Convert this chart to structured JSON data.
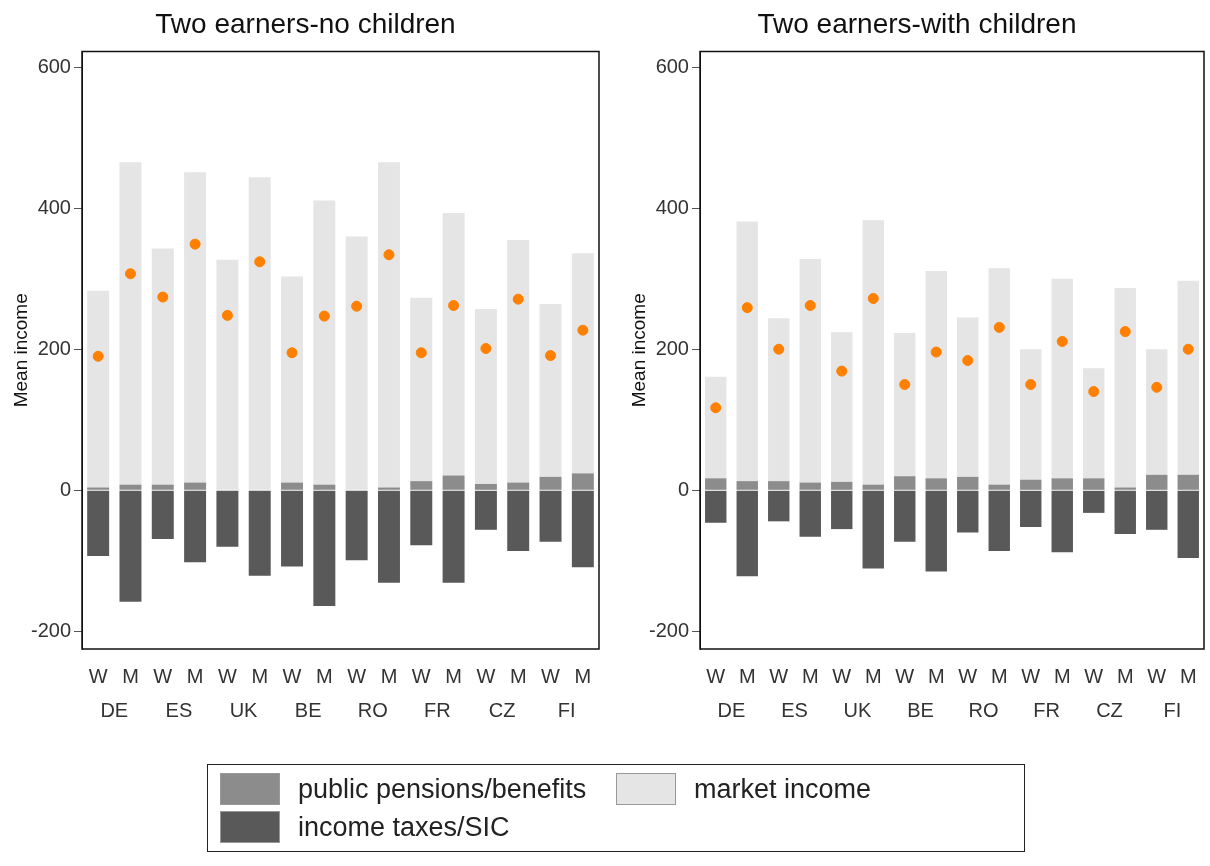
{
  "chart_data": [
    {
      "type": "bar",
      "title": "Two earners-no children",
      "ylabel": "Mean income",
      "categories": [
        "W",
        "M",
        "W",
        "M",
        "W",
        "M",
        "W",
        "M",
        "W",
        "M",
        "W",
        "M",
        "W",
        "M",
        "W",
        "M"
      ],
      "annotations": [
        "DE",
        "ES",
        "UK",
        "BE",
        "RO",
        "FR",
        "CZ",
        "FI"
      ],
      "stacked": true,
      "ylim": [
        -225,
        622
      ],
      "yticks": [
        -200,
        0,
        200,
        400,
        600
      ],
      "grid": false,
      "legend": "bottom",
      "marker": "circle",
      "series": [
        {
          "name": "public pensions/benefits",
          "color": "#8c8c8c",
          "values": [
            4,
            8,
            8,
            11,
            null,
            0,
            11,
            8,
            null,
            4,
            13,
            21,
            9,
            11,
            19,
            24
          ]
        },
        {
          "name": "market income",
          "color": "#e5e5e5",
          "values": [
            279,
            457,
            335,
            440,
            327,
            444,
            292,
            403,
            360,
            461,
            260,
            372,
            248,
            344,
            245,
            312
          ]
        },
        {
          "name": "income taxes/SIC",
          "color": "#595959",
          "values": [
            -93,
            -158,
            -69,
            -102,
            -80,
            -121,
            -108,
            -164,
            -99,
            -131,
            -78,
            -131,
            -56,
            -86,
            -73,
            -109
          ]
        },
        {
          "type": "scatter",
          "color": "#ff8000",
          "values": [
            190,
            307,
            274,
            349,
            248,
            324,
            195,
            247,
            261,
            334,
            195,
            262,
            201,
            271,
            191,
            227
          ]
        }
      ]
    },
    {
      "type": "bar",
      "title": "Two earners-with children",
      "ylabel": "Mean income",
      "categories": [
        "W",
        "M",
        "W",
        "M",
        "W",
        "M",
        "W",
        "M",
        "W",
        "M",
        "W",
        "M",
        "W",
        "M",
        "W",
        "M"
      ],
      "annotations": [
        "DE",
        "ES",
        "UK",
        "BE",
        "RO",
        "FR",
        "CZ",
        "FI"
      ],
      "stacked": true,
      "ylim": [
        -225,
        622
      ],
      "yticks": [
        -200,
        0,
        200,
        400,
        600
      ],
      "grid": false,
      "legend": "bottom",
      "marker": "circle",
      "series": [
        {
          "name": "public pensions/benefits",
          "color": "#8c8c8c",
          "values": [
            17,
            13,
            13,
            11,
            12,
            8,
            20,
            17,
            19,
            8,
            15,
            17,
            17,
            4,
            22,
            22
          ]
        },
        {
          "name": "market income",
          "color": "#e5e5e5",
          "values": [
            144,
            368,
            231,
            317,
            212,
            375,
            203,
            294,
            226,
            307,
            185,
            283,
            156,
            283,
            178,
            275
          ]
        },
        {
          "name": "income taxes/SIC",
          "color": "#595959",
          "values": [
            -46,
            -122,
            -44,
            -66,
            -55,
            -111,
            -73,
            -115,
            -60,
            -86,
            -52,
            -88,
            -32,
            -62,
            -56,
            -96
          ]
        },
        {
          "type": "scatter",
          "color": "#ff8000",
          "values": [
            117,
            259,
            200,
            262,
            169,
            272,
            150,
            196,
            184,
            231,
            150,
            211,
            140,
            225,
            146,
            200
          ]
        }
      ]
    }
  ]
}
